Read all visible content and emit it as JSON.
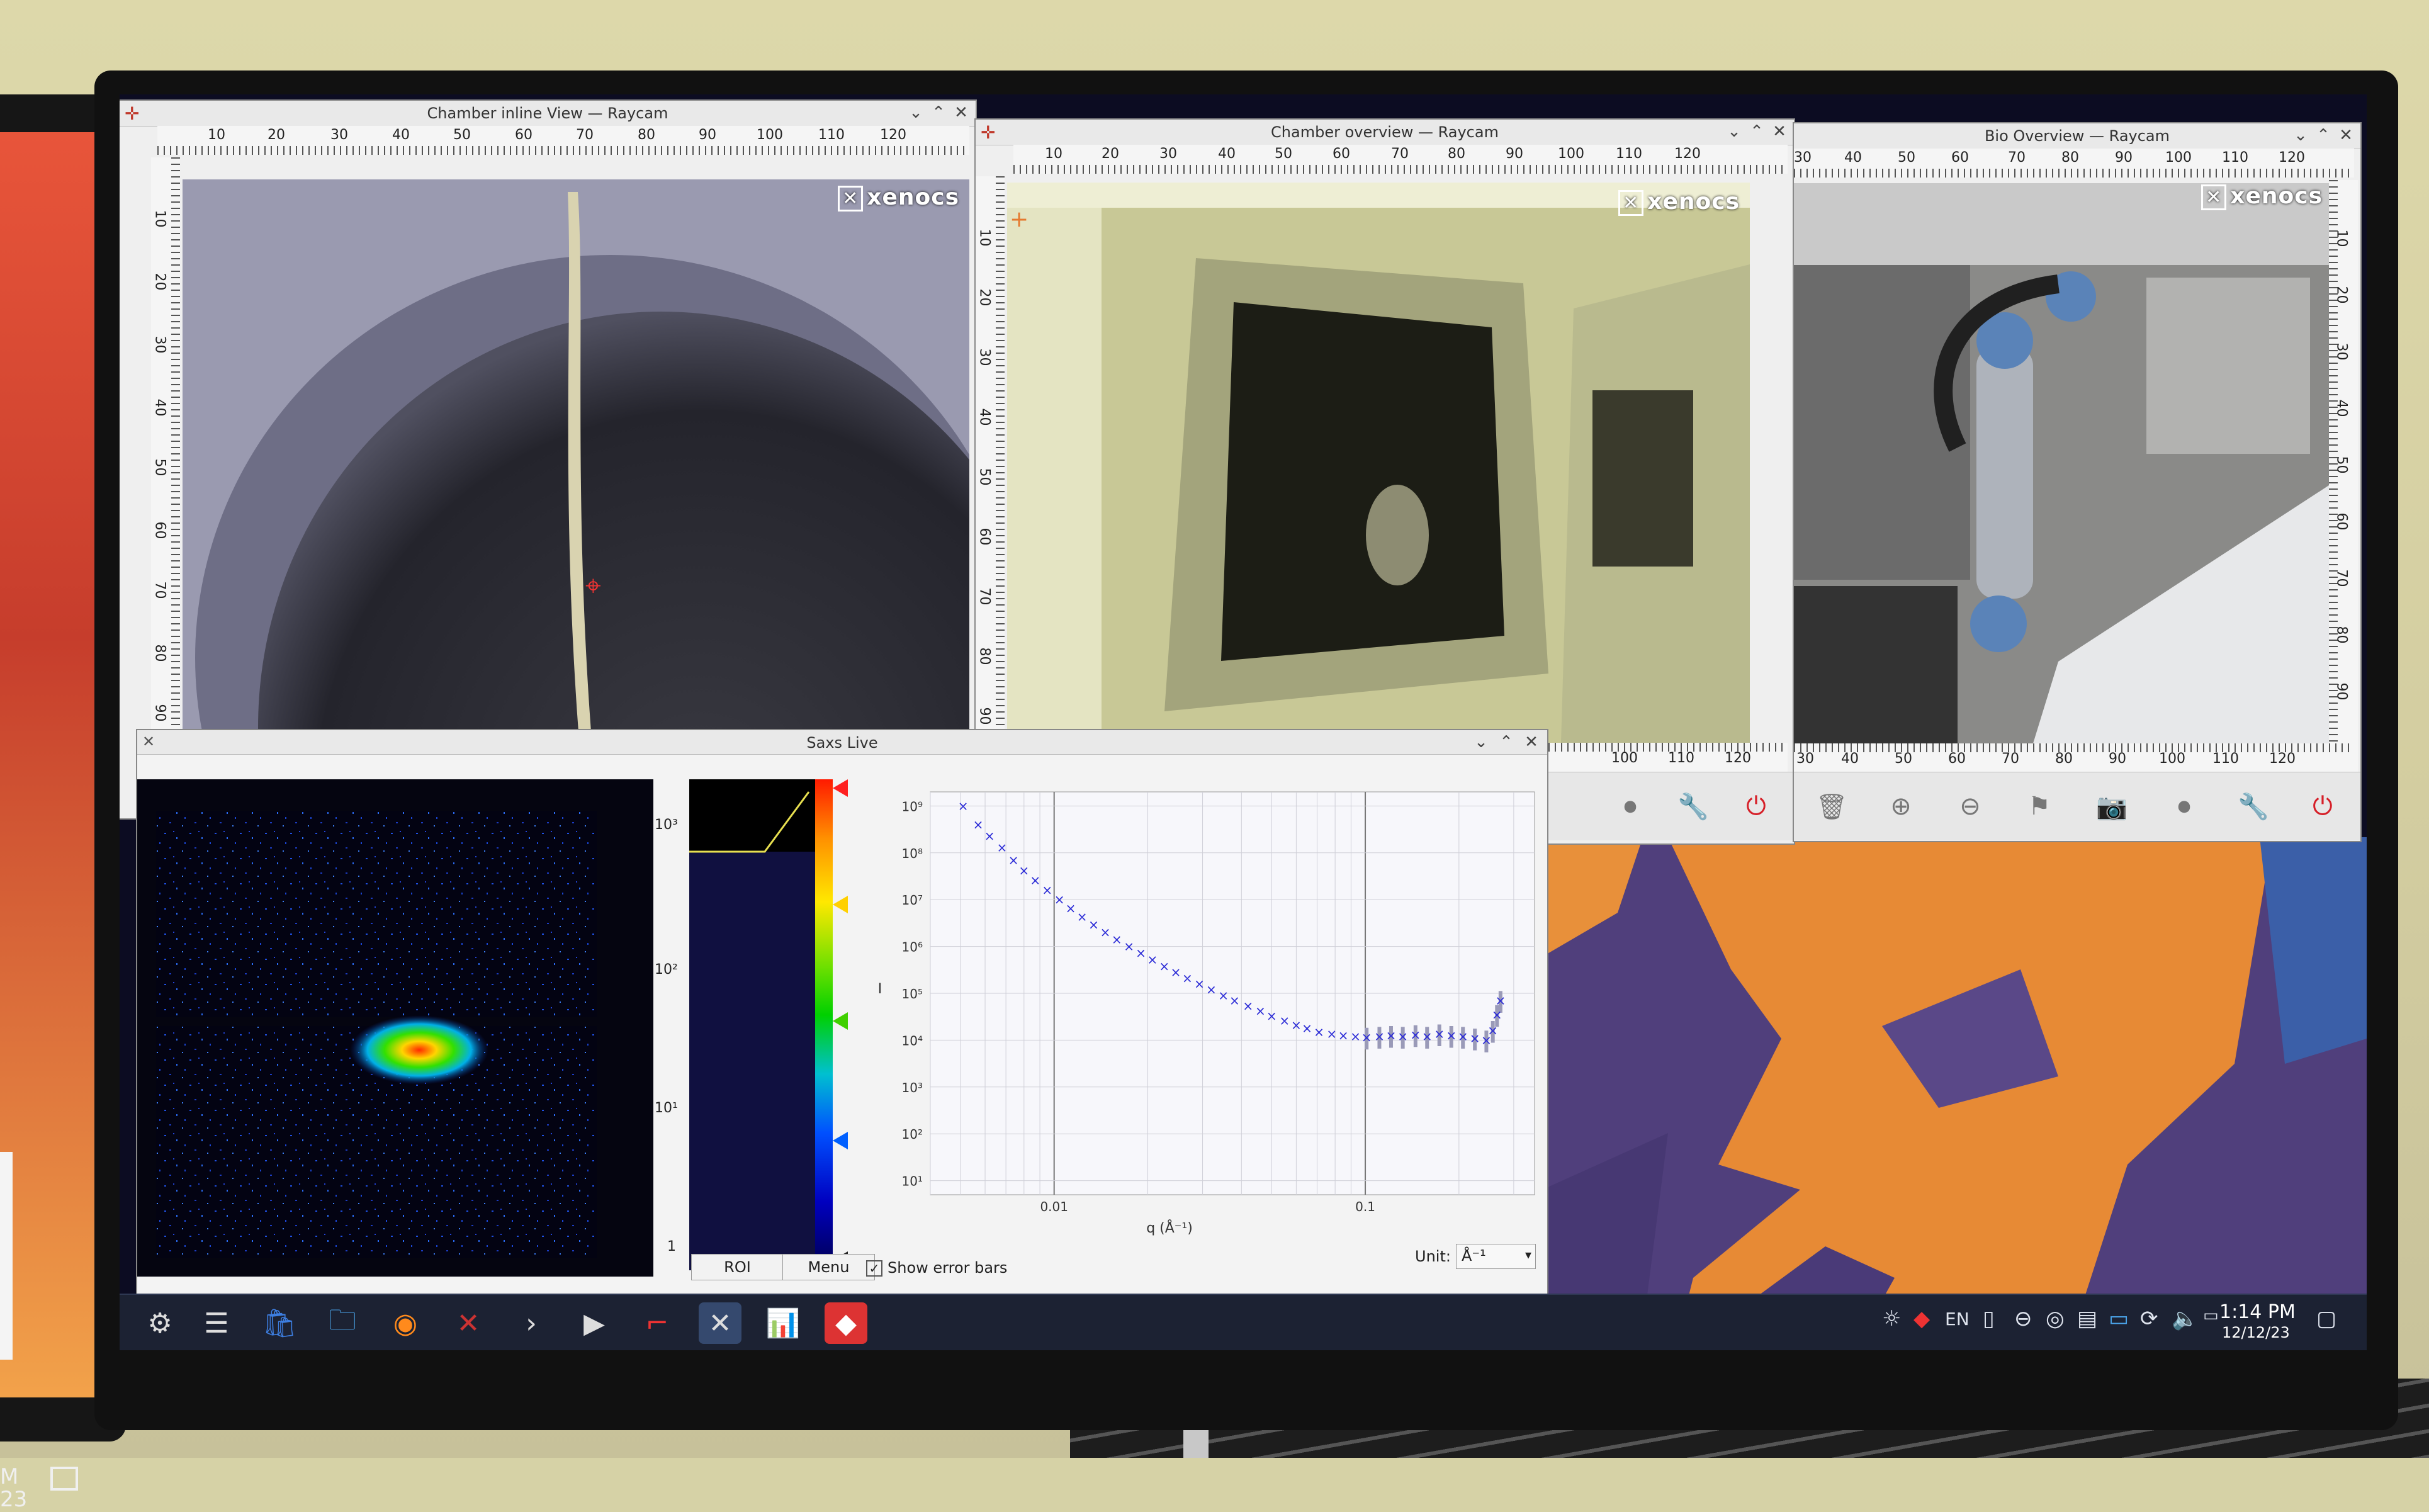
{
  "windows": {
    "inline": {
      "title": "Chamber inline View — Raycam",
      "logo": "xenocs",
      "ruler_h": [
        "10",
        "20",
        "30",
        "40",
        "50",
        "60",
        "70",
        "80",
        "90",
        "100",
        "110",
        "120"
      ],
      "ruler_v": [
        "10",
        "20",
        "30",
        "40",
        "50",
        "60",
        "70",
        "80",
        "90"
      ]
    },
    "overview": {
      "title": "Chamber overview — Raycam",
      "logo": "xenocs",
      "ruler_h": [
        "10",
        "20",
        "30",
        "40",
        "50",
        "60",
        "70",
        "80",
        "90",
        "100",
        "110",
        "120"
      ],
      "ruler_v": [
        "10",
        "20",
        "30",
        "40",
        "50",
        "60",
        "70",
        "80",
        "90"
      ],
      "ruler_h_bottom": [
        "100",
        "110",
        "120"
      ]
    },
    "bio": {
      "title": "Bio Overview — Raycam",
      "logo": "xenocs",
      "ruler_h": [
        "30",
        "40",
        "50",
        "60",
        "70",
        "80",
        "90",
        "100",
        "110",
        "120"
      ],
      "ruler_v": [
        "10",
        "20",
        "30",
        "40",
        "50",
        "60",
        "70",
        "80",
        "90"
      ],
      "ruler_h_bottom": [
        "30",
        "40",
        "50",
        "60",
        "70",
        "80",
        "90",
        "100",
        "110",
        "120"
      ]
    }
  },
  "saxs": {
    "title": "Saxs Live",
    "colorbar_ticks": [
      "10³",
      "10²",
      "10¹",
      "1"
    ],
    "roi_label": "ROI",
    "menu_label": "Menu",
    "show_error_bars_label": "Show error bars",
    "unit_label": "Unit:",
    "unit_value": "Å⁻¹"
  },
  "chart_data": {
    "type": "scatter",
    "xlabel": "q (Å⁻¹)",
    "ylabel": "I",
    "x_scale": "log",
    "y_scale": "log",
    "xlim": [
      0.004,
      0.35
    ],
    "ylim": [
      5,
      2000000000.0
    ],
    "x_ticks": [
      {
        "value": 0.01,
        "label": "0.01"
      },
      {
        "value": 0.1,
        "label": "0.1"
      }
    ],
    "y_ticks": [
      {
        "value": 10,
        "label": "10¹"
      },
      {
        "value": 100,
        "label": "10²"
      },
      {
        "value": 1000,
        "label": "10³"
      },
      {
        "value": 10000,
        "label": "10⁴"
      },
      {
        "value": 100000,
        "label": "10⁵"
      },
      {
        "value": 1000000,
        "label": "10⁶"
      },
      {
        "value": 10000000,
        "label": "10⁷"
      },
      {
        "value": 100000000,
        "label": "10⁸"
      },
      {
        "value": 1000000000,
        "label": "10⁹"
      }
    ],
    "grid": true,
    "marker": "x",
    "color": "#2b2bd6",
    "points": [
      [
        0.0051,
        1000000000.0
      ],
      [
        0.0057,
        400000000.0
      ],
      [
        0.0062,
        230000000.0
      ],
      [
        0.0068,
        130000000.0
      ],
      [
        0.0074,
        70000000.0
      ],
      [
        0.008,
        42000000.0
      ],
      [
        0.0087,
        26000000.0
      ],
      [
        0.0095,
        16000000.0
      ],
      [
        0.0104,
        10000000.0
      ],
      [
        0.0113,
        6500000.0
      ],
      [
        0.0123,
        4300000.0
      ],
      [
        0.0134,
        2900000.0
      ],
      [
        0.0146,
        2000000.0
      ],
      [
        0.0159,
        1400000.0
      ],
      [
        0.0174,
        1000000.0
      ],
      [
        0.019,
        720000.0
      ],
      [
        0.0207,
        520000.0
      ],
      [
        0.0226,
        380000.0
      ],
      [
        0.0246,
        280000.0
      ],
      [
        0.0268,
        210000.0
      ],
      [
        0.0293,
        160000.0
      ],
      [
        0.032,
        120000.0
      ],
      [
        0.035,
        90000.0
      ],
      [
        0.038,
        70000.0
      ],
      [
        0.042,
        54000.0
      ],
      [
        0.046,
        42000.0
      ],
      [
        0.05,
        33000.0
      ],
      [
        0.055,
        26000.0
      ],
      [
        0.06,
        21000.0
      ],
      [
        0.065,
        18000.0
      ],
      [
        0.071,
        15000.0
      ],
      [
        0.078,
        13500.0
      ],
      [
        0.085,
        12500.0
      ],
      [
        0.093,
        12000.0
      ],
      [
        0.101,
        11500.0
      ],
      [
        0.111,
        12000.0
      ],
      [
        0.121,
        12500.0
      ],
      [
        0.132,
        12000.0
      ],
      [
        0.145,
        13000.0
      ],
      [
        0.158,
        12000.0
      ],
      [
        0.173,
        13500.0
      ],
      [
        0.189,
        12500.0
      ],
      [
        0.206,
        12000.0
      ],
      [
        0.225,
        11000.0
      ],
      [
        0.245,
        10000.0
      ],
      [
        0.257,
        16000.0
      ],
      [
        0.265,
        35000.0
      ],
      [
        0.272,
        70000.0
      ]
    ]
  },
  "taskbar": {
    "items": [
      "launcher-icon",
      "settings-icon",
      "store-icon",
      "folder-icon",
      "firefox-icon",
      "xenocs-icon",
      "terminal-icon",
      "play-icon",
      "app-icon",
      "xenocs-active-icon",
      "chart-icon",
      "anydesk-icon"
    ],
    "tray_lang": "EN",
    "clock_time": "1:14 PM",
    "clock_date": "12/12/23"
  },
  "left_monitor": {
    "clock_line1": "M",
    "clock_line2": "23"
  }
}
